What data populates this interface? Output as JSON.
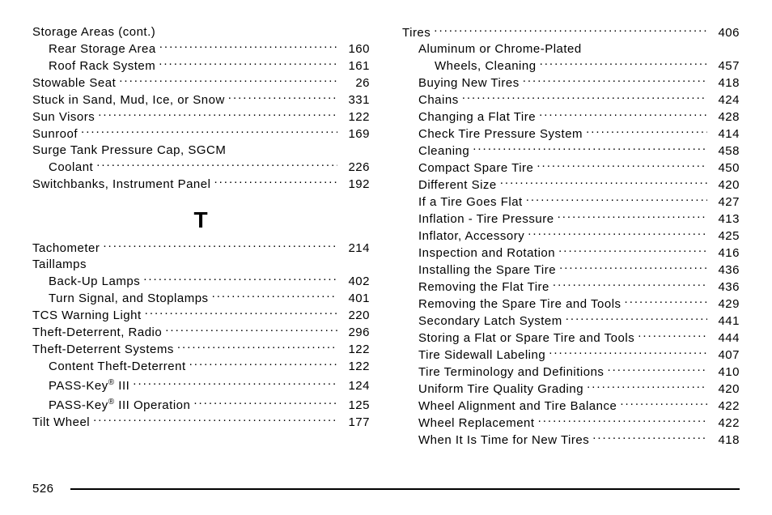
{
  "page_number": "526",
  "section_letter": "T",
  "left_top": [
    {
      "label": "Storage Areas (cont.)",
      "page": "",
      "indent": 0,
      "dots": false
    },
    {
      "label": "Rear Storage Area",
      "page": "160",
      "indent": 1,
      "dots": true
    },
    {
      "label": "Roof Rack System",
      "page": "161",
      "indent": 1,
      "dots": true
    },
    {
      "label": "Stowable Seat",
      "page": "26",
      "indent": 0,
      "dots": true
    },
    {
      "label": "Stuck in Sand, Mud, Ice, or Snow",
      "page": "331",
      "indent": 0,
      "dots": true
    },
    {
      "label": "Sun Visors",
      "page": "122",
      "indent": 0,
      "dots": true
    },
    {
      "label": "Sunroof",
      "page": "169",
      "indent": 0,
      "dots": true
    },
    {
      "label": "Surge Tank Pressure Cap, SGCM",
      "page": "",
      "indent": 0,
      "dots": false
    },
    {
      "label": "Coolant",
      "page": "226",
      "indent": 1,
      "dots": true
    },
    {
      "label": "Switchbanks, Instrument Panel",
      "page": "192",
      "indent": 0,
      "dots": true
    }
  ],
  "left_bottom": [
    {
      "label": "Tachometer",
      "page": "214",
      "indent": 0,
      "dots": true
    },
    {
      "label": "Taillamps",
      "page": "",
      "indent": 0,
      "dots": false
    },
    {
      "label": "Back-Up Lamps",
      "page": "402",
      "indent": 1,
      "dots": true
    },
    {
      "label": "Turn Signal, and Stoplamps",
      "page": "401",
      "indent": 1,
      "dots": true
    },
    {
      "label": "TCS Warning Light",
      "page": "220",
      "indent": 0,
      "dots": true
    },
    {
      "label": "Theft-Deterrent, Radio",
      "page": "296",
      "indent": 0,
      "dots": true
    },
    {
      "label": "Theft-Deterrent Systems",
      "page": "122",
      "indent": 0,
      "dots": true
    },
    {
      "label": "Content Theft-Deterrent",
      "page": "122",
      "indent": 1,
      "dots": true
    },
    {
      "html": "PASS-Key<span class=\"sup\">®</span> III",
      "page": "124",
      "indent": 1,
      "dots": true
    },
    {
      "html": "PASS-Key<span class=\"sup\">®</span> III Operation",
      "page": "125",
      "indent": 1,
      "dots": true
    },
    {
      "label": "Tilt Wheel",
      "page": "177",
      "indent": 0,
      "dots": true
    }
  ],
  "right": [
    {
      "label": "Tires",
      "page": "406",
      "indent": 0,
      "dots": true
    },
    {
      "label": "Aluminum or Chrome-Plated",
      "page": "",
      "indent": 1,
      "dots": false
    },
    {
      "label": "Wheels, Cleaning",
      "page": "457",
      "indent": 2,
      "dots": true
    },
    {
      "label": "Buying New Tires",
      "page": "418",
      "indent": 1,
      "dots": true
    },
    {
      "label": "Chains",
      "page": "424",
      "indent": 1,
      "dots": true
    },
    {
      "label": "Changing a Flat Tire",
      "page": "428",
      "indent": 1,
      "dots": true
    },
    {
      "label": "Check Tire Pressure System",
      "page": "414",
      "indent": 1,
      "dots": true
    },
    {
      "label": "Cleaning",
      "page": "458",
      "indent": 1,
      "dots": true
    },
    {
      "label": "Compact Spare Tire",
      "page": "450",
      "indent": 1,
      "dots": true
    },
    {
      "label": "Different Size",
      "page": "420",
      "indent": 1,
      "dots": true
    },
    {
      "label": "If a Tire Goes Flat",
      "page": "427",
      "indent": 1,
      "dots": true
    },
    {
      "label": "Inflation - Tire Pressure",
      "page": "413",
      "indent": 1,
      "dots": true
    },
    {
      "label": "Inflator, Accessory",
      "page": "425",
      "indent": 1,
      "dots": true
    },
    {
      "label": "Inspection and Rotation",
      "page": "416",
      "indent": 1,
      "dots": true
    },
    {
      "label": "Installing the Spare Tire",
      "page": "436",
      "indent": 1,
      "dots": true
    },
    {
      "label": "Removing the Flat Tire",
      "page": "436",
      "indent": 1,
      "dots": true
    },
    {
      "label": "Removing the Spare Tire and Tools",
      "page": "429",
      "indent": 1,
      "dots": true
    },
    {
      "label": "Secondary Latch System",
      "page": "441",
      "indent": 1,
      "dots": true
    },
    {
      "label": "Storing a Flat or Spare Tire and Tools",
      "page": "444",
      "indent": 1,
      "dots": true
    },
    {
      "label": "Tire Sidewall Labeling",
      "page": "407",
      "indent": 1,
      "dots": true
    },
    {
      "label": "Tire Terminology and Definitions",
      "page": "410",
      "indent": 1,
      "dots": true
    },
    {
      "label": "Uniform Tire Quality Grading",
      "page": "420",
      "indent": 1,
      "dots": true
    },
    {
      "label": "Wheel Alignment and Tire Balance",
      "page": "422",
      "indent": 1,
      "dots": true
    },
    {
      "label": "Wheel Replacement",
      "page": "422",
      "indent": 1,
      "dots": true
    },
    {
      "label": "When It Is Time for New Tires",
      "page": "418",
      "indent": 1,
      "dots": true
    }
  ]
}
